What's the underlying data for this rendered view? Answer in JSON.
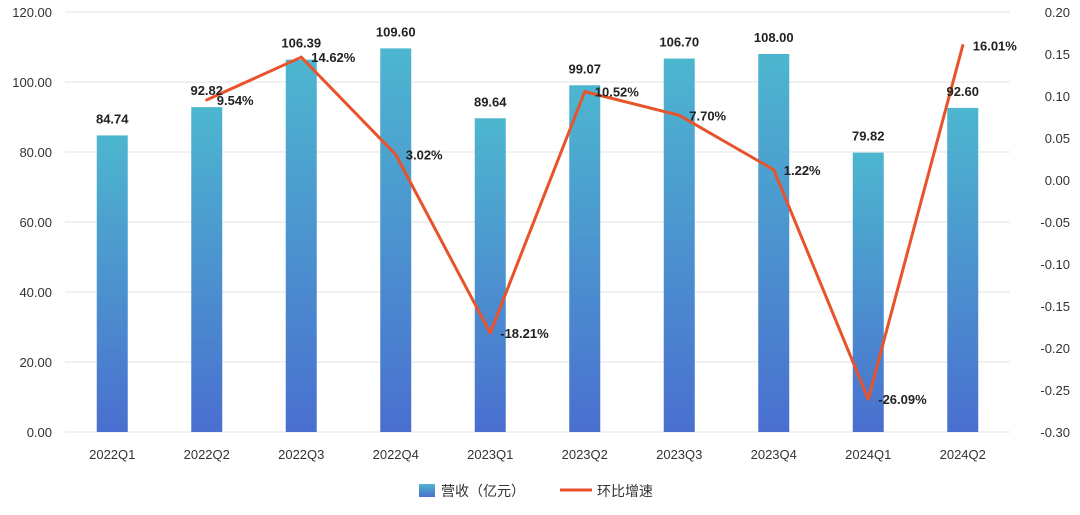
{
  "chart_data": {
    "type": "bar",
    "categories": [
      "2022Q1",
      "2022Q2",
      "2022Q3",
      "2022Q4",
      "2023Q1",
      "2023Q2",
      "2023Q3",
      "2023Q4",
      "2024Q1",
      "2024Q2"
    ],
    "series": [
      {
        "name": "营收（亿元）",
        "type": "bar",
        "axis": "left",
        "values": [
          84.74,
          92.82,
          106.39,
          109.6,
          89.64,
          99.07,
          106.7,
          108.0,
          79.82,
          92.6
        ],
        "labels": [
          "84.74",
          "92.82",
          "106.39",
          "109.60",
          "89.64",
          "99.07",
          "106.70",
          "108.00",
          "79.82",
          "92.60"
        ]
      },
      {
        "name": "环比增速",
        "type": "line",
        "axis": "right",
        "values": [
          null,
          0.0954,
          0.1462,
          0.0302,
          -0.1821,
          0.1052,
          0.077,
          0.0122,
          -0.2609,
          0.1601
        ],
        "labels": [
          "",
          "9.54%",
          "14.62%",
          "3.02%",
          "-18.21%",
          "10.52%",
          "7.70%",
          "1.22%",
          "-26.09%",
          "16.01%"
        ]
      }
    ],
    "y_left": {
      "range": [
        0,
        120
      ],
      "ticks": [
        "0.00",
        "20.00",
        "40.00",
        "60.00",
        "80.00",
        "100.00",
        "120.00"
      ]
    },
    "y_right": {
      "range": [
        -0.3,
        0.2
      ],
      "ticks": [
        "-0.30",
        "-0.25",
        "-0.20",
        "-0.15",
        "-0.10",
        "-0.05",
        "0.00",
        "0.05",
        "0.10",
        "0.15",
        "0.20"
      ]
    },
    "grid": true,
    "legend": "bottom-center",
    "colors": {
      "bar_top": "#4db6cf",
      "bar_bottom": "#4a6fcf",
      "line": "#e8532c"
    }
  }
}
